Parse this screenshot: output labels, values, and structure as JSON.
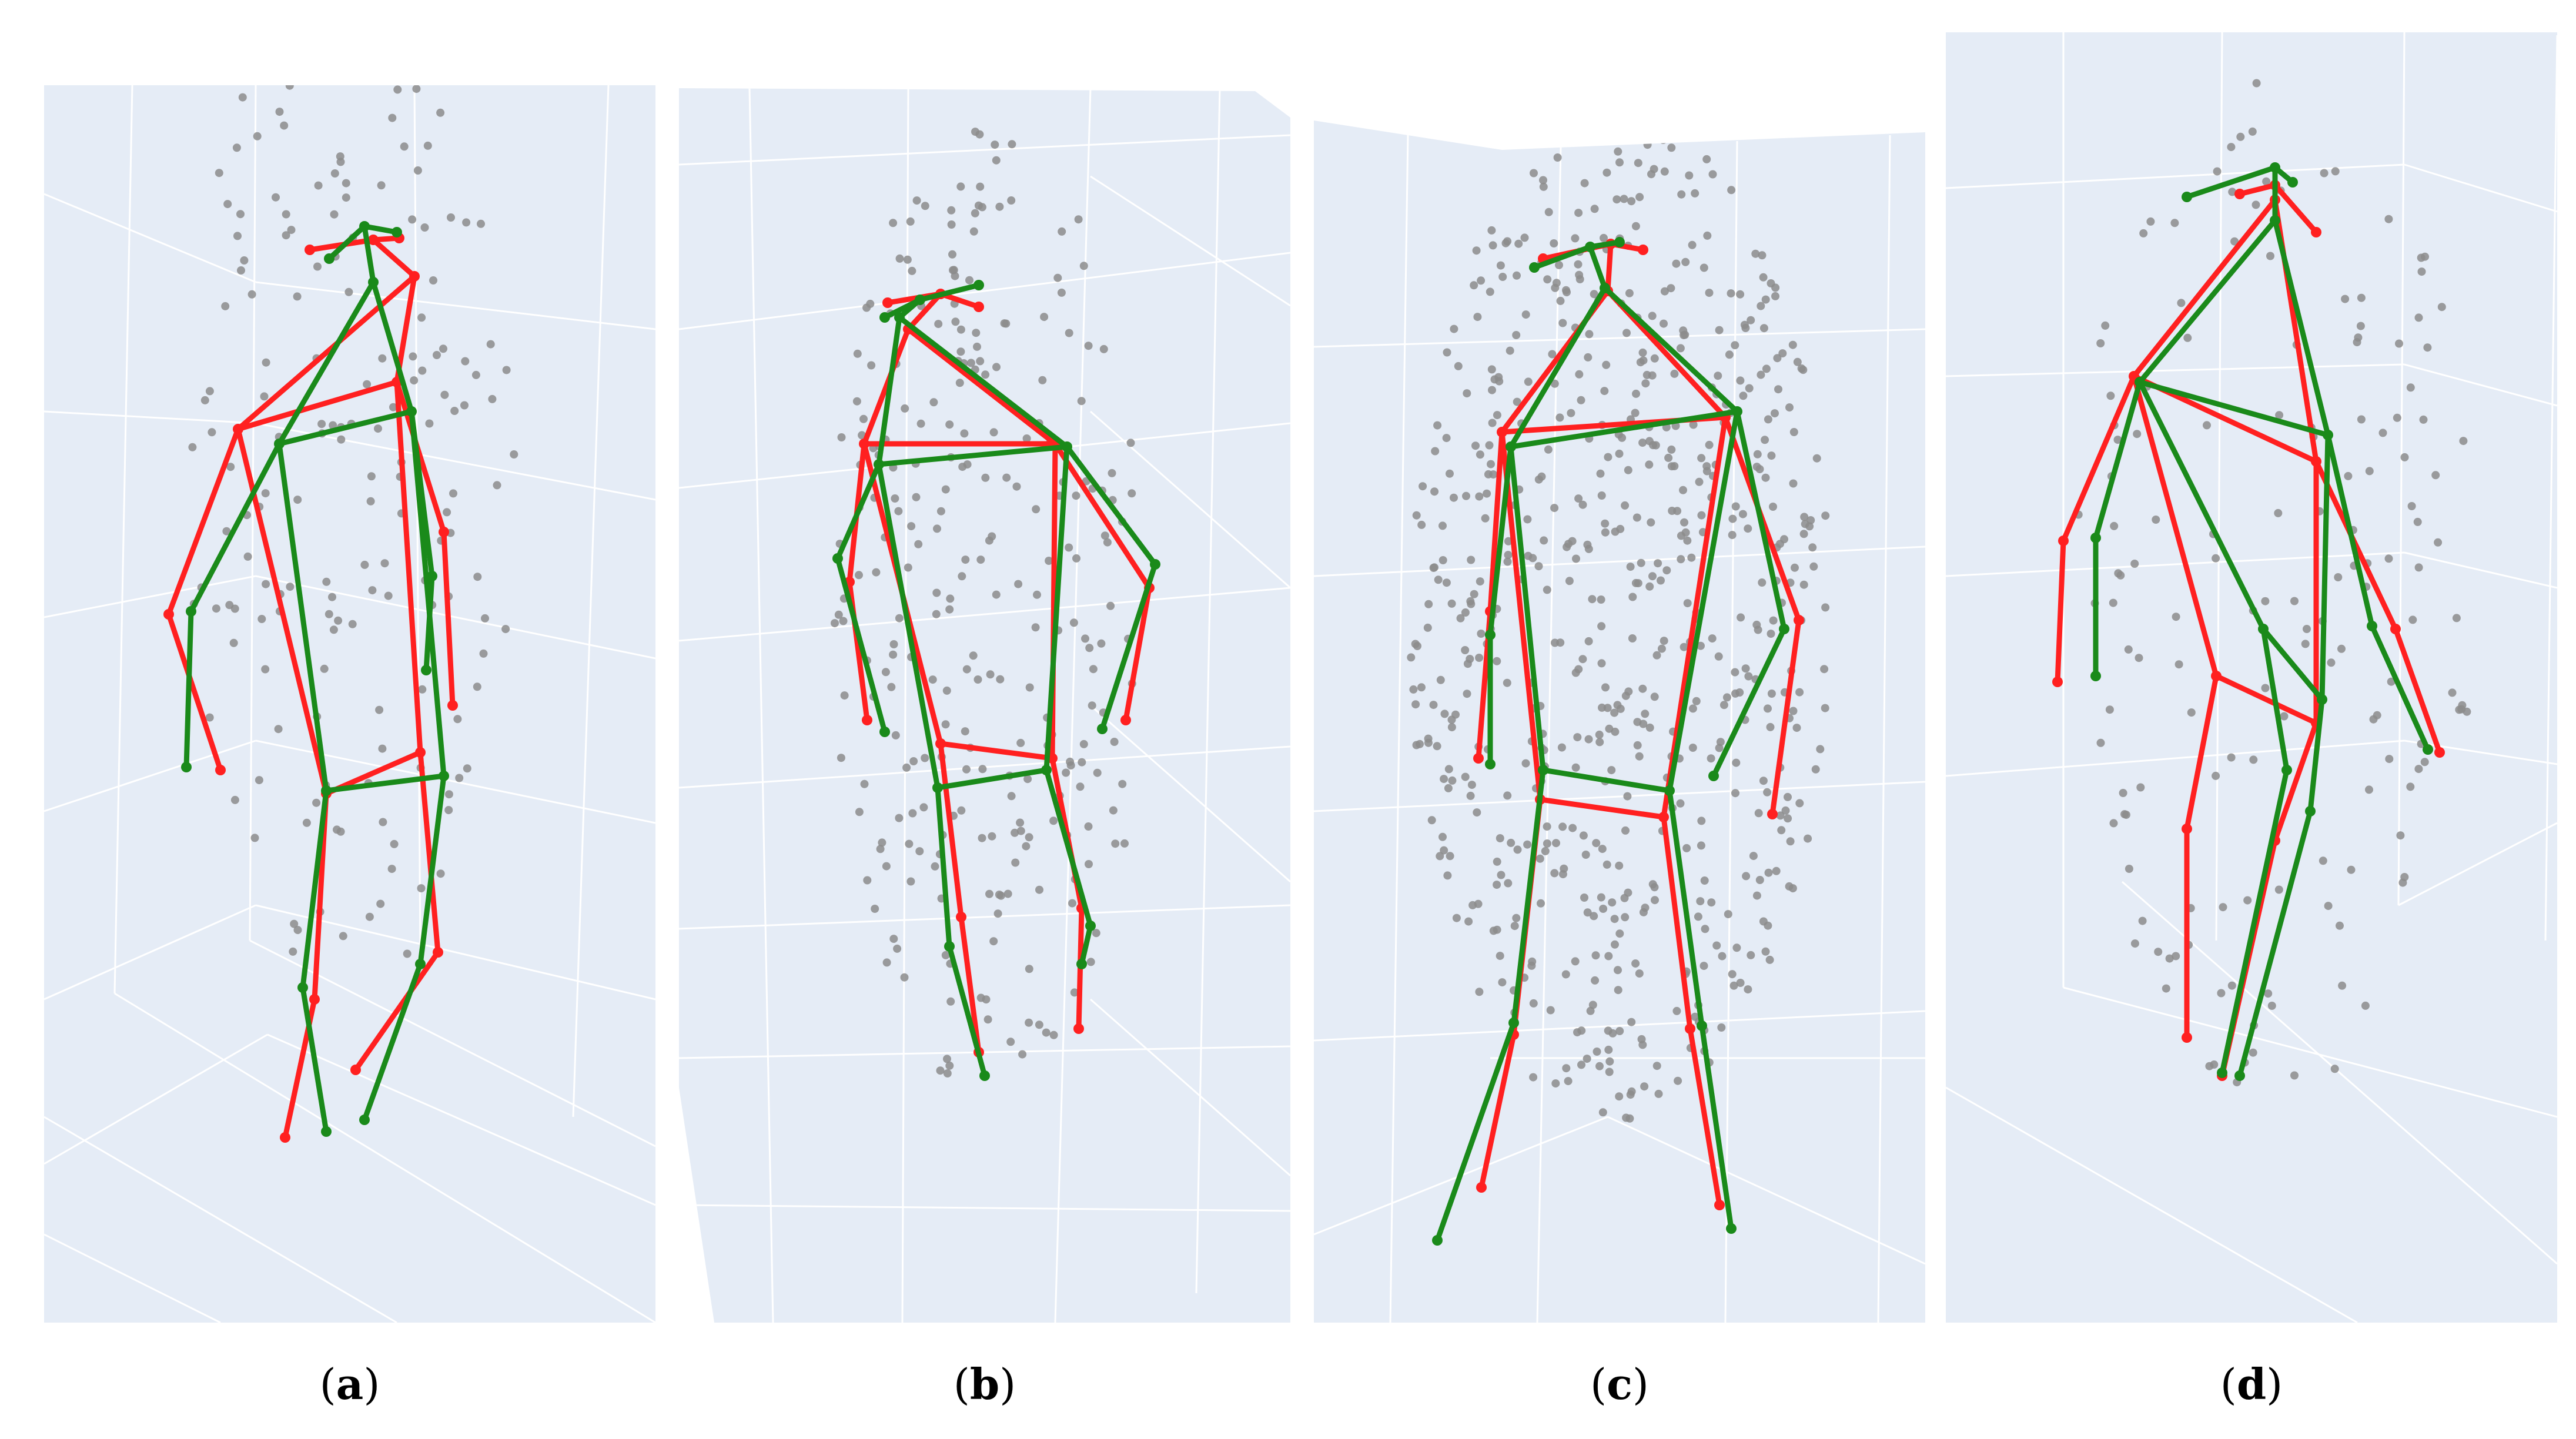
{
  "figure": {
    "colors": {
      "background": "#e5ecf6",
      "grid": "#ffffff",
      "predicted_skeleton": "#ff2020",
      "ground_truth_skeleton": "#1a8a1a",
      "point_cloud": "#8c8c8c"
    },
    "panels": [
      {
        "id": "a",
        "caption_letter": "a"
      },
      {
        "id": "b",
        "caption_letter": "b"
      },
      {
        "id": "c",
        "caption_letter": "c"
      },
      {
        "id": "d",
        "caption_letter": "d"
      }
    ]
  }
}
